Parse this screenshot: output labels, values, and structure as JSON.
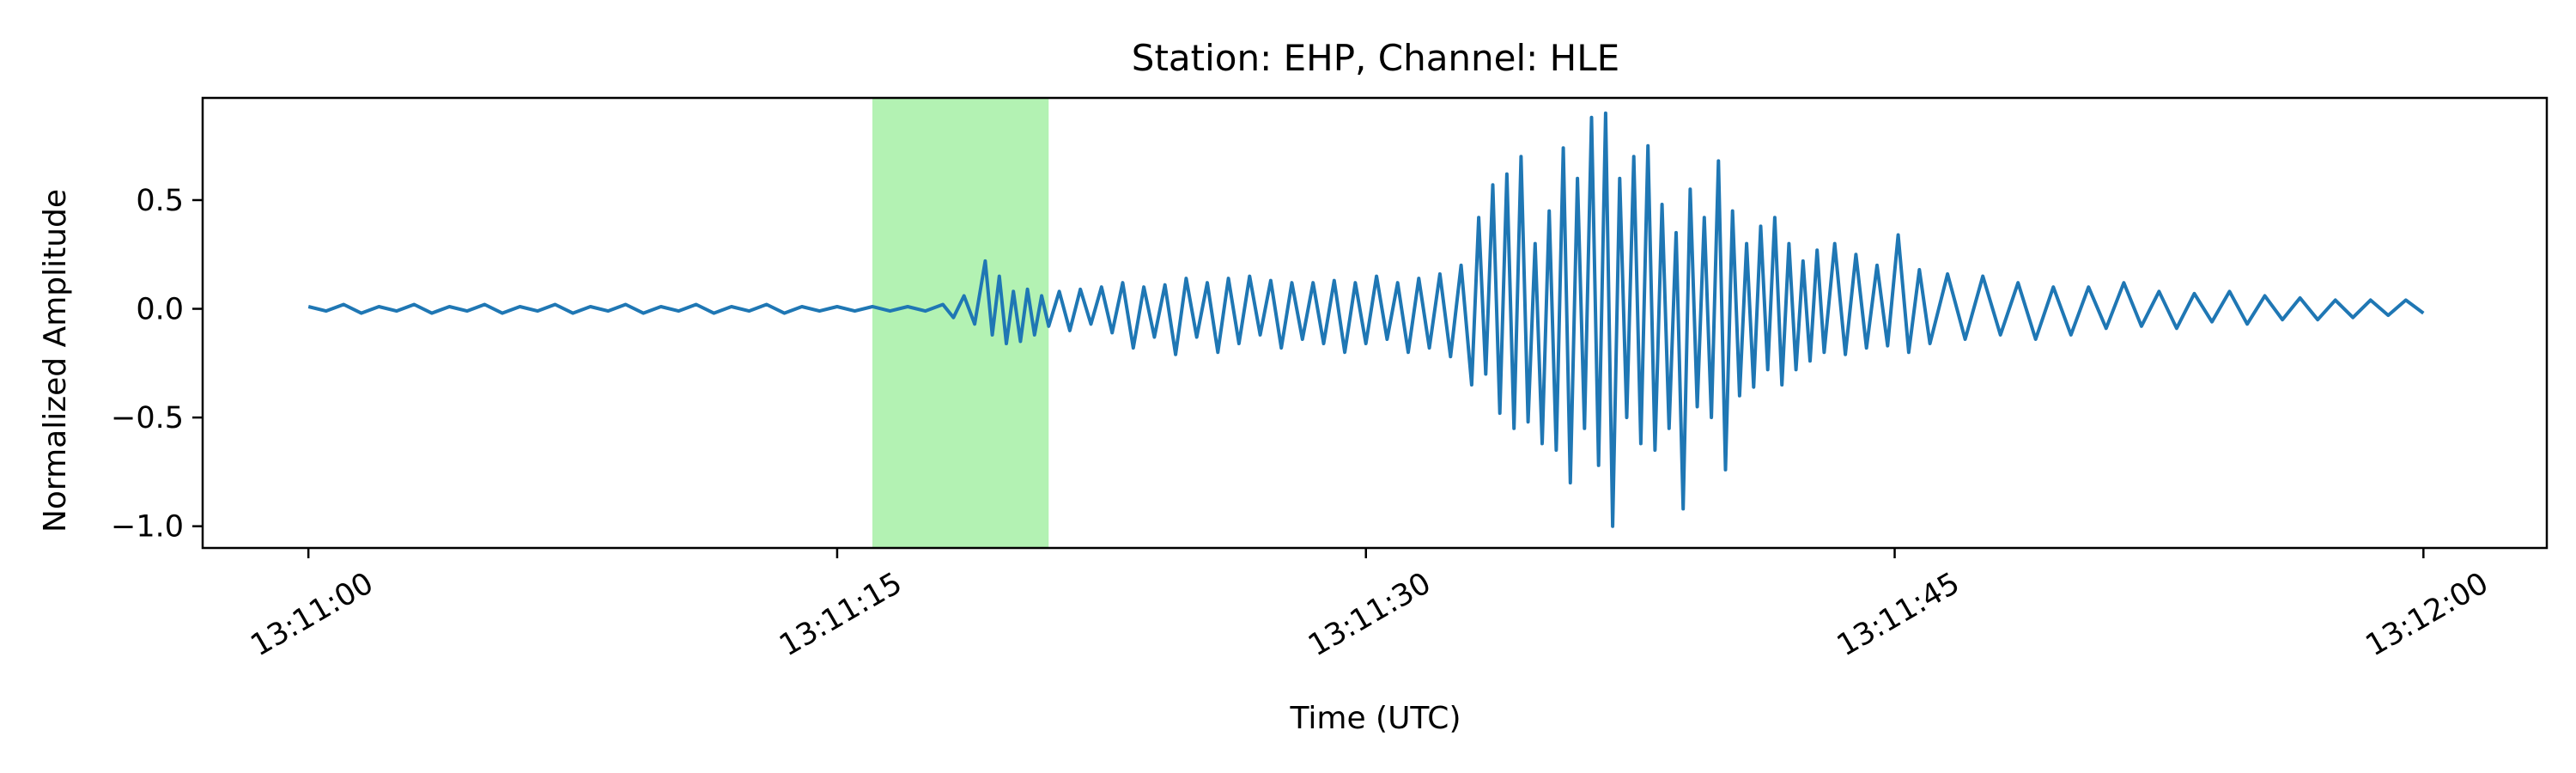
{
  "chart_data": {
    "type": "line",
    "title": "Station: EHP, Channel: HLE",
    "xlabel": "Time (UTC)",
    "ylabel": "Normalized Amplitude",
    "x_start": "13:11:00",
    "x_end": "13:12:00",
    "xlim_seconds": [
      -3,
      63.5
    ],
    "ylim": [
      -1.1,
      0.97
    ],
    "x_ticks": [
      {
        "value": 0,
        "label": "13:11:00"
      },
      {
        "value": 15,
        "label": "13:11:15"
      },
      {
        "value": 30,
        "label": "13:11:30"
      },
      {
        "value": 45,
        "label": "13:11:45"
      },
      {
        "value": 60,
        "label": "13:12:00"
      }
    ],
    "y_ticks": [
      {
        "value": 0.5,
        "label": "0.5"
      },
      {
        "value": 0.0,
        "label": "0.0"
      },
      {
        "value": -0.5,
        "label": "−0.5"
      },
      {
        "value": -1.0,
        "label": "−1.0"
      }
    ],
    "highlight": {
      "x_start": 16.0,
      "x_end": 21.0,
      "color": "#b3f2b3"
    },
    "series": [
      {
        "color": "#1f77b4",
        "points": [
          [
            0.0,
            0.01
          ],
          [
            0.5,
            -0.01
          ],
          [
            1.0,
            0.02
          ],
          [
            1.5,
            -0.02
          ],
          [
            2.0,
            0.01
          ],
          [
            2.5,
            -0.01
          ],
          [
            3.0,
            0.02
          ],
          [
            3.5,
            -0.02
          ],
          [
            4.0,
            0.01
          ],
          [
            4.5,
            -0.01
          ],
          [
            5.0,
            0.02
          ],
          [
            5.5,
            -0.02
          ],
          [
            6.0,
            0.01
          ],
          [
            6.5,
            -0.01
          ],
          [
            7.0,
            0.02
          ],
          [
            7.5,
            -0.02
          ],
          [
            8.0,
            0.01
          ],
          [
            8.5,
            -0.01
          ],
          [
            9.0,
            0.02
          ],
          [
            9.5,
            -0.02
          ],
          [
            10.0,
            0.01
          ],
          [
            10.5,
            -0.01
          ],
          [
            11.0,
            0.02
          ],
          [
            11.5,
            -0.02
          ],
          [
            12.0,
            0.01
          ],
          [
            12.5,
            -0.01
          ],
          [
            13.0,
            0.02
          ],
          [
            13.5,
            -0.02
          ],
          [
            14.0,
            0.01
          ],
          [
            14.5,
            -0.01
          ],
          [
            15.0,
            0.01
          ],
          [
            15.5,
            -0.01
          ],
          [
            16.0,
            0.01
          ],
          [
            16.5,
            -0.01
          ],
          [
            17.0,
            0.01
          ],
          [
            17.5,
            -0.01
          ],
          [
            18.0,
            0.02
          ],
          [
            18.3,
            -0.04
          ],
          [
            18.6,
            0.06
          ],
          [
            18.9,
            -0.07
          ],
          [
            19.2,
            0.22
          ],
          [
            19.4,
            -0.12
          ],
          [
            19.6,
            0.15
          ],
          [
            19.8,
            -0.16
          ],
          [
            20.0,
            0.08
          ],
          [
            20.2,
            -0.15
          ],
          [
            20.4,
            0.09
          ],
          [
            20.6,
            -0.12
          ],
          [
            20.8,
            0.06
          ],
          [
            21.0,
            -0.08
          ],
          [
            21.3,
            0.08
          ],
          [
            21.6,
            -0.1
          ],
          [
            21.9,
            0.09
          ],
          [
            22.2,
            -0.07
          ],
          [
            22.5,
            0.1
          ],
          [
            22.8,
            -0.11
          ],
          [
            23.1,
            0.12
          ],
          [
            23.4,
            -0.18
          ],
          [
            23.7,
            0.1
          ],
          [
            24.0,
            -0.13
          ],
          [
            24.3,
            0.11
          ],
          [
            24.6,
            -0.21
          ],
          [
            24.9,
            0.14
          ],
          [
            25.2,
            -0.13
          ],
          [
            25.5,
            0.12
          ],
          [
            25.8,
            -0.2
          ],
          [
            26.1,
            0.14
          ],
          [
            26.4,
            -0.16
          ],
          [
            26.7,
            0.15
          ],
          [
            27.0,
            -0.12
          ],
          [
            27.3,
            0.13
          ],
          [
            27.6,
            -0.18
          ],
          [
            27.9,
            0.12
          ],
          [
            28.2,
            -0.14
          ],
          [
            28.5,
            0.12
          ],
          [
            28.8,
            -0.16
          ],
          [
            29.1,
            0.13
          ],
          [
            29.4,
            -0.2
          ],
          [
            29.7,
            0.12
          ],
          [
            30.0,
            -0.16
          ],
          [
            30.3,
            0.15
          ],
          [
            30.6,
            -0.14
          ],
          [
            30.9,
            0.12
          ],
          [
            31.2,
            -0.2
          ],
          [
            31.5,
            0.14
          ],
          [
            31.8,
            -0.18
          ],
          [
            32.1,
            0.16
          ],
          [
            32.4,
            -0.22
          ],
          [
            32.7,
            0.2
          ],
          [
            33.0,
            -0.35
          ],
          [
            33.2,
            0.42
          ],
          [
            33.4,
            -0.3
          ],
          [
            33.6,
            0.57
          ],
          [
            33.8,
            -0.48
          ],
          [
            34.0,
            0.62
          ],
          [
            34.2,
            -0.55
          ],
          [
            34.4,
            0.7
          ],
          [
            34.6,
            -0.52
          ],
          [
            34.8,
            0.3
          ],
          [
            35.0,
            -0.62
          ],
          [
            35.2,
            0.45
          ],
          [
            35.4,
            -0.65
          ],
          [
            35.6,
            0.74
          ],
          [
            35.8,
            -0.8
          ],
          [
            36.0,
            0.6
          ],
          [
            36.2,
            -0.55
          ],
          [
            36.4,
            0.88
          ],
          [
            36.6,
            -0.72
          ],
          [
            36.8,
            0.9
          ],
          [
            37.0,
            -1.0
          ],
          [
            37.2,
            0.6
          ],
          [
            37.4,
            -0.5
          ],
          [
            37.6,
            0.7
          ],
          [
            37.8,
            -0.62
          ],
          [
            38.0,
            0.75
          ],
          [
            38.2,
            -0.65
          ],
          [
            38.4,
            0.48
          ],
          [
            38.6,
            -0.55
          ],
          [
            38.8,
            0.35
          ],
          [
            39.0,
            -0.92
          ],
          [
            39.2,
            0.55
          ],
          [
            39.4,
            -0.45
          ],
          [
            39.6,
            0.42
          ],
          [
            39.8,
            -0.5
          ],
          [
            40.0,
            0.68
          ],
          [
            40.2,
            -0.74
          ],
          [
            40.4,
            0.45
          ],
          [
            40.6,
            -0.4
          ],
          [
            40.8,
            0.3
          ],
          [
            41.0,
            -0.36
          ],
          [
            41.2,
            0.38
          ],
          [
            41.4,
            -0.28
          ],
          [
            41.6,
            0.42
          ],
          [
            41.8,
            -0.35
          ],
          [
            42.0,
            0.3
          ],
          [
            42.2,
            -0.28
          ],
          [
            42.4,
            0.22
          ],
          [
            42.6,
            -0.24
          ],
          [
            42.8,
            0.27
          ],
          [
            43.0,
            -0.2
          ],
          [
            43.3,
            0.3
          ],
          [
            43.6,
            -0.21
          ],
          [
            43.9,
            0.25
          ],
          [
            44.2,
            -0.18
          ],
          [
            44.5,
            0.2
          ],
          [
            44.8,
            -0.17
          ],
          [
            45.1,
            0.34
          ],
          [
            45.4,
            -0.2
          ],
          [
            45.7,
            0.18
          ],
          [
            46.0,
            -0.16
          ],
          [
            46.5,
            0.16
          ],
          [
            47.0,
            -0.14
          ],
          [
            47.5,
            0.15
          ],
          [
            48.0,
            -0.12
          ],
          [
            48.5,
            0.12
          ],
          [
            49.0,
            -0.14
          ],
          [
            49.5,
            0.1
          ],
          [
            50.0,
            -0.12
          ],
          [
            50.5,
            0.1
          ],
          [
            51.0,
            -0.09
          ],
          [
            51.5,
            0.12
          ],
          [
            52.0,
            -0.08
          ],
          [
            52.5,
            0.08
          ],
          [
            53.0,
            -0.09
          ],
          [
            53.5,
            0.07
          ],
          [
            54.0,
            -0.06
          ],
          [
            54.5,
            0.08
          ],
          [
            55.0,
            -0.07
          ],
          [
            55.5,
            0.06
          ],
          [
            56.0,
            -0.05
          ],
          [
            56.5,
            0.05
          ],
          [
            57.0,
            -0.05
          ],
          [
            57.5,
            0.04
          ],
          [
            58.0,
            -0.04
          ],
          [
            58.5,
            0.04
          ],
          [
            59.0,
            -0.03
          ],
          [
            59.5,
            0.04
          ],
          [
            60.0,
            -0.02
          ]
        ]
      }
    ],
    "grid": false
  }
}
